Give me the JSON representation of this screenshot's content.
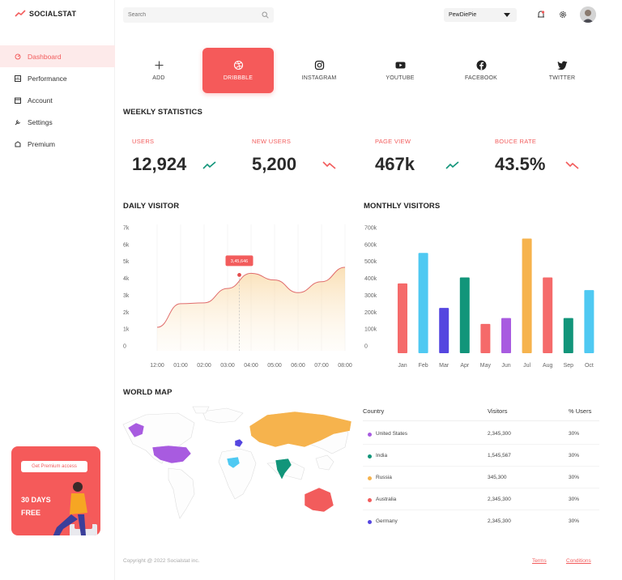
{
  "app": {
    "logo": "SOCIALSTAT"
  },
  "sidebar": {
    "items": [
      {
        "label": "Dashboard",
        "icon": "dashboard-icon",
        "active": true
      },
      {
        "label": "Performance",
        "icon": "performance-icon",
        "active": false
      },
      {
        "label": "Account",
        "icon": "account-icon",
        "active": false
      },
      {
        "label": "Settings",
        "icon": "settings-icon",
        "active": false
      },
      {
        "label": "Premium",
        "icon": "premium-icon",
        "active": false
      }
    ],
    "promo": {
      "button": "Get Premium access",
      "text": "30 DAYS FREE"
    }
  },
  "topbar": {
    "search_placeholder": "Search",
    "profile": "PewDiePie"
  },
  "tabs": [
    {
      "label": "ADD",
      "icon": "plus-icon"
    },
    {
      "label": "DRIBBBLE",
      "icon": "dribbble-icon"
    },
    {
      "label": "INSTAGRAM",
      "icon": "instagram-icon"
    },
    {
      "label": "YOUTUBE",
      "icon": "youtube-icon"
    },
    {
      "label": "FACEBOOK",
      "icon": "facebook-icon"
    },
    {
      "label": "TWITTER",
      "icon": "twitter-icon"
    }
  ],
  "weekly": {
    "title": "WEEKLY STATISTICS",
    "stats": [
      {
        "label": "USERS",
        "value": "12,924",
        "trend": "up"
      },
      {
        "label": "NEW USERS",
        "value": "5,200",
        "trend": "down"
      },
      {
        "label": "PAGE VIEW",
        "value": "467k",
        "trend": "up"
      },
      {
        "label": "BOUCE RATE",
        "value": "43.5%",
        "trend": "down"
      }
    ]
  },
  "daily": {
    "title": "DAILY VISITOR",
    "y_ticks": [
      "7k",
      "6k",
      "5k",
      "4k",
      "3k",
      "2k",
      "1k",
      "0"
    ],
    "x_ticks": [
      "12:00",
      "01:00",
      "02:00",
      "03:00",
      "04:00",
      "05:00",
      "06:00",
      "07:00",
      "08:00"
    ],
    "tooltip": "3,45,646"
  },
  "monthly": {
    "title": "MONTHLY VISITORS",
    "y_ticks": [
      "700k",
      "600k",
      "500k",
      "400k",
      "300k",
      "200k",
      "100k",
      "0"
    ]
  },
  "map": {
    "title": "WORLD MAP",
    "columns": [
      "Country",
      "Visitors",
      "% Users"
    ],
    "rows": [
      {
        "country": "United States",
        "visitors": "2,345,300",
        "pct": "30%",
        "color": "#a85be0"
      },
      {
        "country": "India",
        "visitors": "1,545,567",
        "pct": "30%",
        "color": "#12957a"
      },
      {
        "country": "Russia",
        "visitors": "345,300",
        "pct": "30%",
        "color": "#f6b34d"
      },
      {
        "country": "Australia",
        "visitors": "2,345,300",
        "pct": "30%",
        "color": "#f25c5c"
      },
      {
        "country": "Germany",
        "visitors": "2,345,300",
        "pct": "30%",
        "color": "#5546e0"
      }
    ]
  },
  "footer": {
    "copyright": "Copyright @ 2022 Socialstat inc.",
    "terms": "Terms",
    "conditions": "Conditions"
  },
  "colors": {
    "accent": "#f55a5a",
    "blue": "#4fc9f2",
    "indigo": "#5546e0",
    "green": "#12957a",
    "salmon": "#f56a6a",
    "purple": "#a85be0",
    "orange": "#f6b34d"
  },
  "chart_data": [
    {
      "type": "area",
      "title": "DAILY VISITOR",
      "x": [
        "12:00",
        "01:00",
        "02:00",
        "03:00",
        "04:00",
        "05:00",
        "06:00",
        "07:00",
        "08:00"
      ],
      "values": [
        1100,
        2500,
        2550,
        3400,
        4300,
        3900,
        3150,
        3800,
        4650
      ],
      "ylim": [
        0,
        7000
      ],
      "highlight": {
        "x": "03:30",
        "value": 4200,
        "label": "3,45,646"
      }
    },
    {
      "type": "bar",
      "title": "MONTHLY VISITORS",
      "categories": [
        "Jan",
        "Feb",
        "Mar",
        "Apr",
        "May",
        "Jun",
        "Jul",
        "Aug",
        "Sep",
        "Oct"
      ],
      "values": [
        370000,
        550000,
        225000,
        405000,
        130000,
        165000,
        635000,
        405000,
        165000,
        330000
      ],
      "bar_colors": [
        "#f56a6a",
        "#4fc9f2",
        "#5546e0",
        "#12957a",
        "#f56a6a",
        "#a85be0",
        "#f6b34d",
        "#f56a6a",
        "#12957a",
        "#4fc9f2"
      ],
      "ylim": [
        0,
        700000
      ]
    }
  ]
}
